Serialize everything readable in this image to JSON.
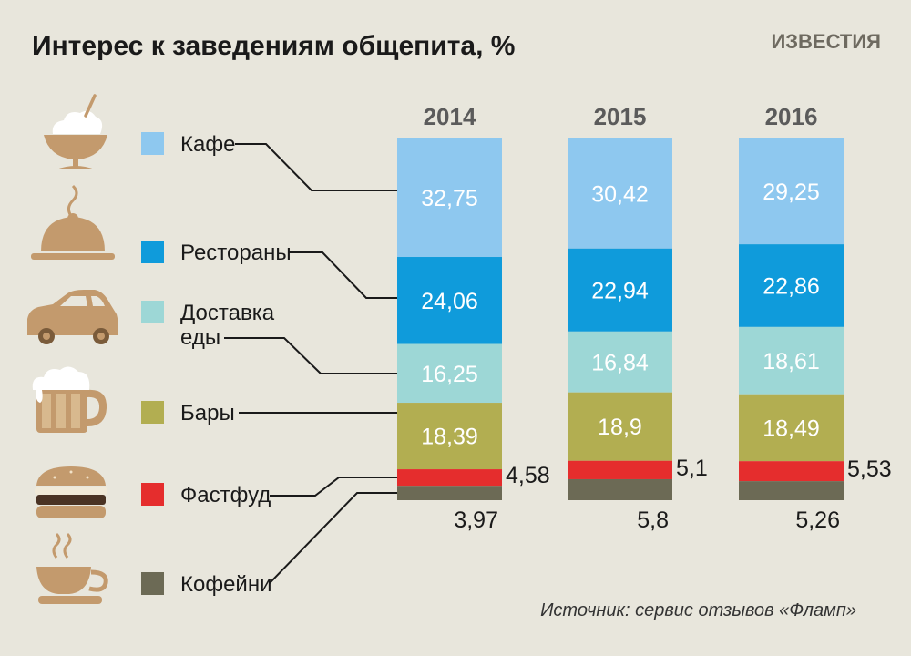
{
  "title": "Интерес к заведениям общепита, %",
  "brand": "ИЗВЕСТИЯ",
  "source": "Источник: сервис отзывов «Фламп»",
  "icons": [
    "bowl-icon",
    "cloche-icon",
    "car-icon",
    "beer-mug-icon",
    "burger-icon",
    "coffee-cup-icon"
  ],
  "chart_data": {
    "type": "bar",
    "stacked": true,
    "orientation": "vertical",
    "categories": [
      "2014",
      "2015",
      "2016"
    ],
    "ylim": [
      0,
      100
    ],
    "series": [
      {
        "name": "Кафе",
        "color": "#8ec8ef",
        "values": [
          32.75,
          30.42,
          29.25
        ],
        "labels": [
          "32,75",
          "30,42",
          "29,25"
        ],
        "label_position": "inside"
      },
      {
        "name": "Рестораны",
        "color": "#0f9bdb",
        "values": [
          24.06,
          22.94,
          22.86
        ],
        "labels": [
          "24,06",
          "22,94",
          "22,86"
        ],
        "label_position": "inside"
      },
      {
        "name": "Доставка\nеды",
        "color": "#9dd7d6",
        "values": [
          16.25,
          16.84,
          18.61
        ],
        "labels": [
          "16,25",
          "16,84",
          "18,61"
        ],
        "label_position": "inside"
      },
      {
        "name": "Бары",
        "color": "#b2ae51",
        "values": [
          18.39,
          18.9,
          18.49
        ],
        "labels": [
          "18,39",
          "18,9",
          "18,49"
        ],
        "label_position": "inside"
      },
      {
        "name": "Фастфуд",
        "color": "#e52d2d",
        "values": [
          4.58,
          5.1,
          5.53
        ],
        "labels": [
          "4,58",
          "5,1",
          "5,53"
        ],
        "label_position": "right"
      },
      {
        "name": "Кофейни",
        "color": "#6c6a55",
        "values": [
          3.97,
          5.8,
          5.26
        ],
        "labels": [
          "3,97",
          "5,8",
          "5,26"
        ],
        "label_position": "below"
      }
    ]
  }
}
